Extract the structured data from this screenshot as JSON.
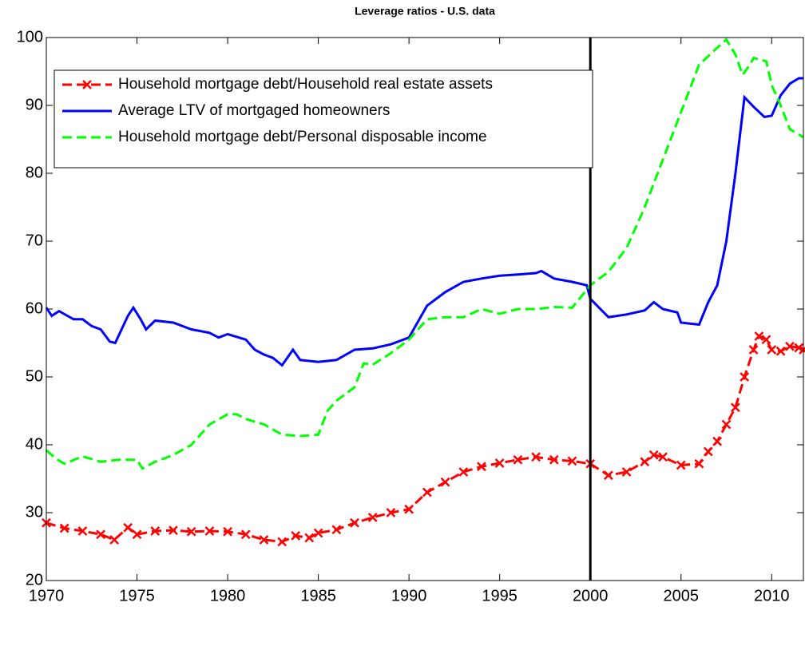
{
  "chart_data": {
    "type": "line",
    "title": "Leverage ratios - U.S. data",
    "xlim": [
      1970,
      2011.75
    ],
    "xticks": [
      1970,
      1975,
      1980,
      1985,
      1990,
      1995,
      2000,
      2005,
      2010
    ],
    "ylim": [
      20,
      100
    ],
    "yticks": [
      20,
      30,
      40,
      50,
      60,
      70,
      80,
      90,
      100
    ],
    "vline": 2000,
    "legend": "upper-left",
    "grid": false,
    "series": [
      {
        "name": "Household mortgage debt/Household real estate assets",
        "color": "#ff0000",
        "style": "dashed",
        "marker": "x",
        "x": [
          1970,
          1971,
          1972,
          1973,
          1973.75,
          1974.5,
          1975,
          1976,
          1977,
          1978,
          1979,
          1980,
          1981,
          1982,
          1983,
          1983.75,
          1984.5,
          1985,
          1986,
          1987,
          1988,
          1989,
          1990,
          1991,
          1992,
          1993,
          1994,
          1995,
          1996,
          1997,
          1998,
          1999,
          2000,
          2001,
          2002,
          2003,
          2003.5,
          2004,
          2005,
          2006,
          2006.5,
          2007,
          2007.5,
          2008,
          2008.5,
          2009,
          2009.3,
          2009.7,
          2010,
          2010.5,
          2011,
          2011.5,
          2011.75
        ],
        "values": [
          28.5,
          27.7,
          27.3,
          26.8,
          26,
          27.8,
          26.8,
          27.3,
          27.4,
          27.2,
          27.3,
          27.2,
          26.8,
          26,
          25.7,
          26.6,
          26.3,
          27,
          27.5,
          28.5,
          29.3,
          30,
          30.5,
          33,
          34.5,
          36,
          36.8,
          37.3,
          37.8,
          38.2,
          37.8,
          37.6,
          37.2,
          35.5,
          36,
          37.5,
          38.5,
          38.2,
          37,
          37.2,
          39,
          40.5,
          43,
          45.5,
          50,
          54,
          56,
          55.5,
          54,
          53.8,
          54.5,
          54.3,
          54
        ]
      },
      {
        "name": "Average LTV of mortgaged homeowners",
        "color": "#0000ff",
        "style": "solid",
        "x": [
          1970,
          1970.3,
          1970.7,
          1971.5,
          1972,
          1972.5,
          1973,
          1973.5,
          1973.8,
          1974.5,
          1974.8,
          1975.2,
          1975.5,
          1976,
          1977,
          1978,
          1979,
          1979.5,
          1980,
          1981,
          1981.5,
          1982,
          1982.5,
          1983,
          1983.6,
          1984,
          1985,
          1986,
          1987,
          1988,
          1989,
          1990,
          1991,
          1992,
          1993,
          1994,
          1995,
          1996,
          1997,
          1997.3,
          1998,
          1999,
          1999.8,
          2000,
          2001,
          2002,
          2003,
          2003.5,
          2004,
          2004.8,
          2005,
          2006,
          2006.5,
          2007,
          2007.5,
          2008,
          2008.5,
          2009,
          2009.6,
          2010,
          2010.5,
          2011,
          2011.5,
          2011.75
        ],
        "values": [
          60.2,
          59,
          59.7,
          58.5,
          58.5,
          57.5,
          57,
          55.2,
          55,
          59,
          60.2,
          58.5,
          57,
          58.3,
          58,
          57,
          56.5,
          55.8,
          56.3,
          55.5,
          54,
          53.3,
          52.8,
          51.7,
          54,
          52.5,
          52.2,
          52.5,
          54,
          54.2,
          54.8,
          55.8,
          60.5,
          62.5,
          64,
          64.5,
          64.9,
          65.1,
          65.3,
          65.6,
          64.5,
          64,
          63.5,
          61.5,
          58.8,
          59.2,
          59.8,
          61,
          60,
          59.5,
          58,
          57.7,
          61,
          63.5,
          70,
          80,
          91.2,
          89.8,
          88.3,
          88.5,
          91.5,
          93.2,
          94,
          94
        ]
      },
      {
        "name": "Household mortgage debt/Personal disposable income",
        "color": "#00ff00",
        "style": "dashed",
        "x": [
          1970,
          1970.5,
          1971,
          1972,
          1973,
          1974,
          1975,
          1975.3,
          1976,
          1977,
          1978,
          1979,
          1980,
          1980.5,
          1981,
          1982,
          1983,
          1984,
          1985,
          1985.5,
          1986,
          1987,
          1987.5,
          1988,
          1989,
          1990,
          1991,
          1992,
          1993,
          1994,
          1995,
          1996,
          1997,
          1998,
          1999,
          2000,
          2001,
          2002,
          2003,
          2004,
          2005,
          2006,
          2007,
          2007.5,
          2008,
          2008.4,
          2008.8,
          2009,
          2009.7,
          2010,
          2010.5,
          2011,
          2011.75
        ],
        "values": [
          39.2,
          38,
          37.2,
          38.3,
          37.5,
          37.8,
          37.8,
          36.5,
          37.5,
          38.5,
          40,
          43,
          44.5,
          44.5,
          43.8,
          43,
          41.5,
          41.3,
          41.5,
          45,
          46.5,
          48.5,
          52,
          51.8,
          53.5,
          55.5,
          58.5,
          58.8,
          58.8,
          60,
          59.3,
          60,
          60,
          60.3,
          60.2,
          63.5,
          65.5,
          69,
          75,
          82,
          89,
          96,
          98.5,
          99.7,
          97.5,
          94.5,
          96,
          97,
          96.5,
          93,
          90,
          86.5,
          85.3
        ]
      }
    ]
  }
}
